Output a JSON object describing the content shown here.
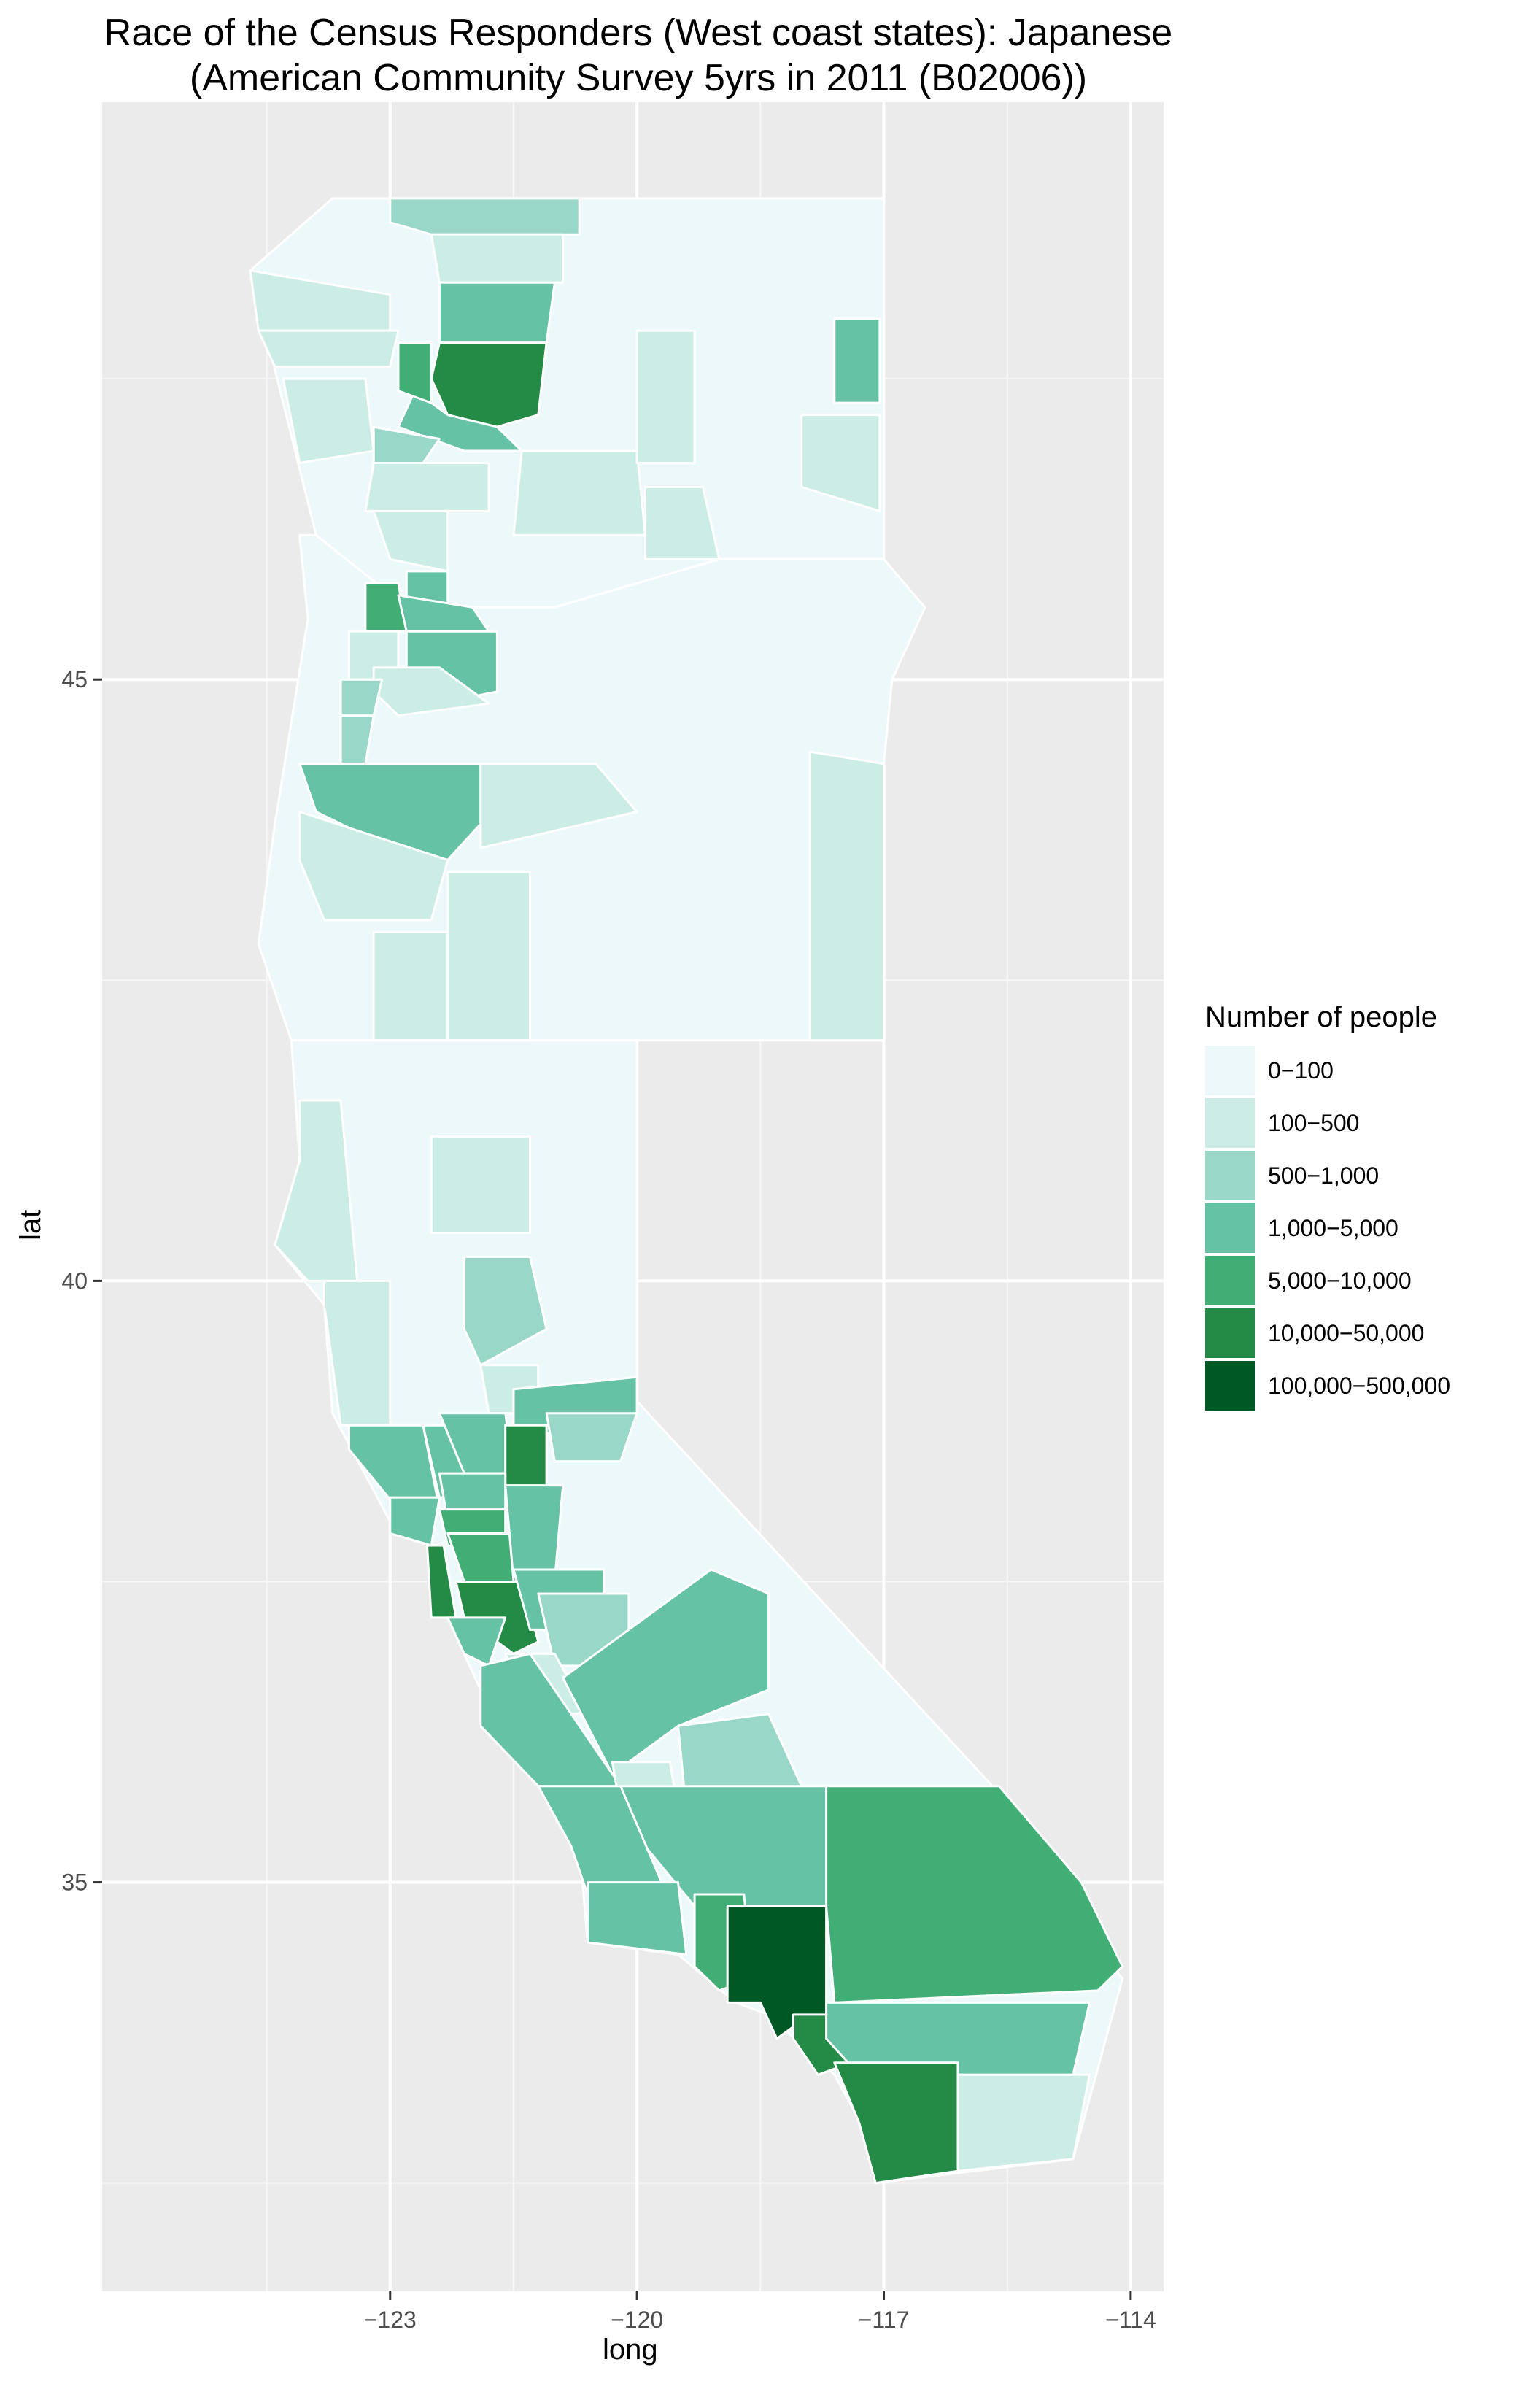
{
  "chart_data": {
    "type": "choropleth",
    "title": "Race of the Census Responders (West coast states): Japanese",
    "subtitle": "(American Community Survey 5yrs in 2011 (B02006))",
    "xlabel": "long",
    "ylabel": "lat",
    "xlim": [
      -126.5,
      -113.6
    ],
    "ylim": [
      31.6,
      49.8
    ],
    "x_ticks": [
      -123,
      -120,
      -117,
      -114
    ],
    "x_tick_labels": [
      "−123",
      "−120",
      "−117",
      "−114"
    ],
    "y_ticks": [
      35,
      40,
      45
    ],
    "y_tick_labels": [
      "35",
      "40",
      "45"
    ],
    "grid": true,
    "legend_position": "right",
    "legend": {
      "title": "Number of people",
      "items": [
        {
          "label": "0−100",
          "color": "#edf8fb"
        },
        {
          "label": "100−500",
          "color": "#ccece6"
        },
        {
          "label": "500−1,000",
          "color": "#99d8c9"
        },
        {
          "label": "1,000−5,000",
          "color": "#66c2a4"
        },
        {
          "label": "5,000−10,000",
          "color": "#41ae76"
        },
        {
          "label": "10,000−50,000",
          "color": "#238b45"
        },
        {
          "label": "100,000−500,000",
          "color": "#005824"
        }
      ]
    }
  }
}
